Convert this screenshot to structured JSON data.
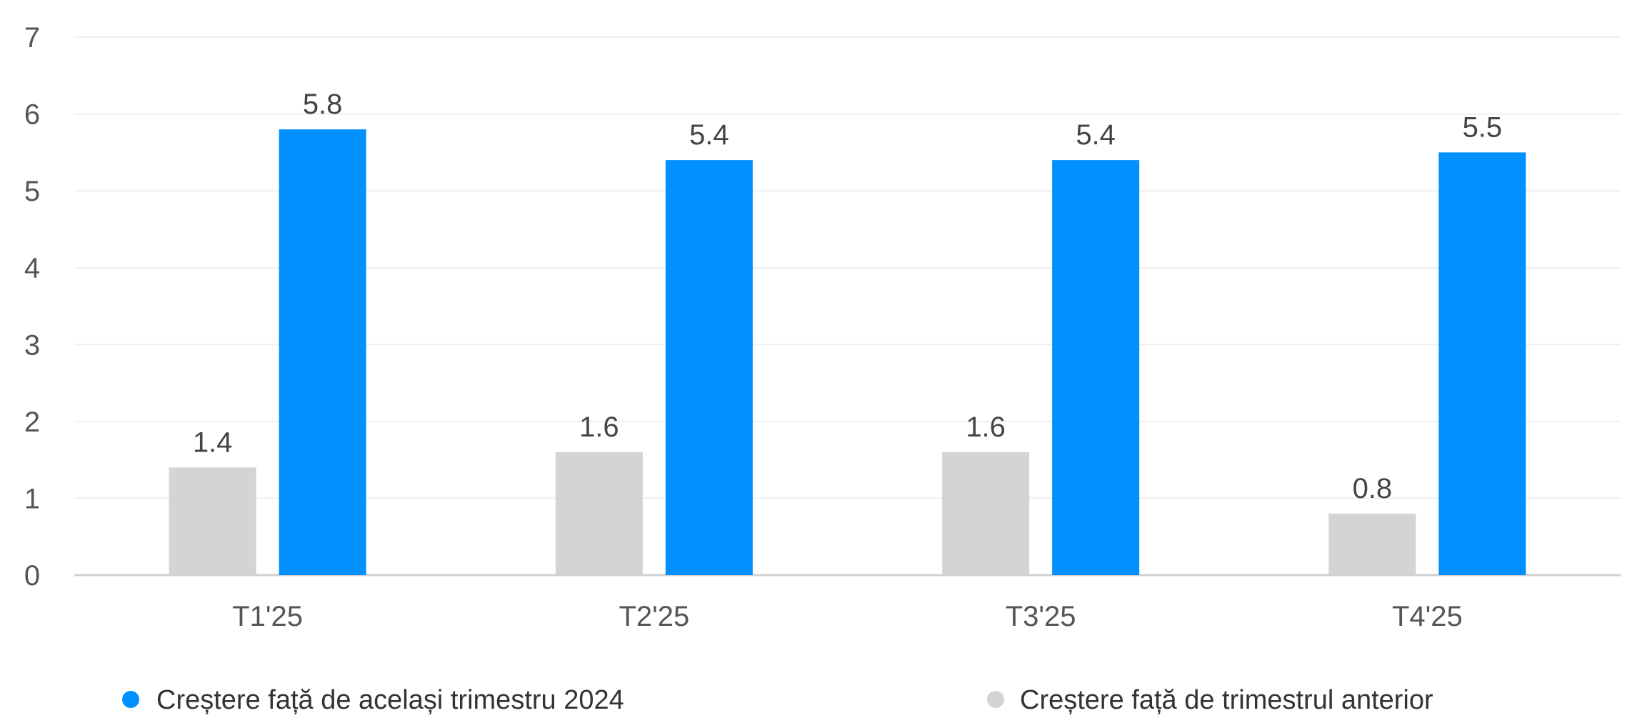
{
  "chart_data": {
    "type": "bar",
    "title": "",
    "xlabel": "",
    "ylabel": "",
    "categories": [
      "T1'25",
      "T2'25",
      "T3'25",
      "T4'25"
    ],
    "series": [
      {
        "name": "Creștere față de trimestrul anterior",
        "values": [
          1.4,
          1.6,
          1.6,
          0.8
        ],
        "color": "#d4d4d4"
      },
      {
        "name": "Creștere față de același trimestru 2024",
        "values": [
          5.8,
          5.4,
          5.4,
          5.5
        ],
        "color": "#0090ff"
      }
    ],
    "data_labels": [
      [
        "1.4",
        "1.6",
        "1.6",
        "0.8"
      ],
      [
        "5.8",
        "5.4",
        "5.4",
        "5.5"
      ]
    ],
    "yticks": [
      "0",
      "1",
      "2",
      "3",
      "4",
      "5",
      "6",
      "7"
    ],
    "ylim": [
      0,
      7
    ],
    "grid": true,
    "legend": {
      "placement": "bottom",
      "order": [
        1,
        0
      ],
      "labels": [
        "Creștere față de același trimestru 2024",
        "Creștere față de trimestrul anterior"
      ]
    }
  }
}
